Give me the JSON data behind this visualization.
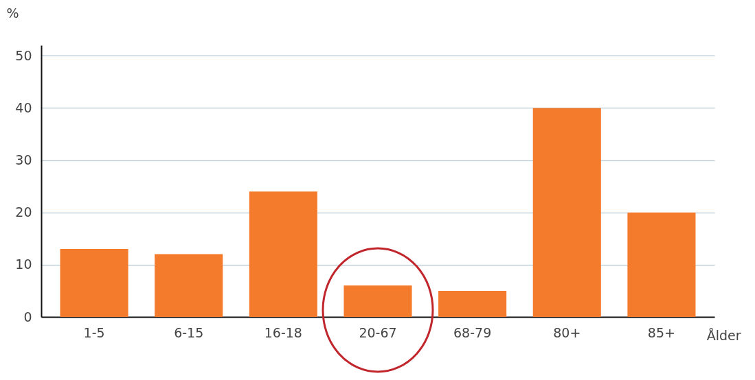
{
  "chart_data": {
    "type": "bar",
    "ylabel": "%",
    "xlabel": "Ålder",
    "categories": [
      "1-5",
      "6-15",
      "16-18",
      "20-67",
      "68-79",
      "80+",
      "85+"
    ],
    "values": [
      13,
      12,
      24,
      6,
      5,
      40,
      20
    ],
    "color": "#f47b2c",
    "ylim": [
      0,
      52
    ],
    "yticks": [
      0,
      10,
      20,
      30,
      40,
      50
    ],
    "grid": "y"
  }
}
